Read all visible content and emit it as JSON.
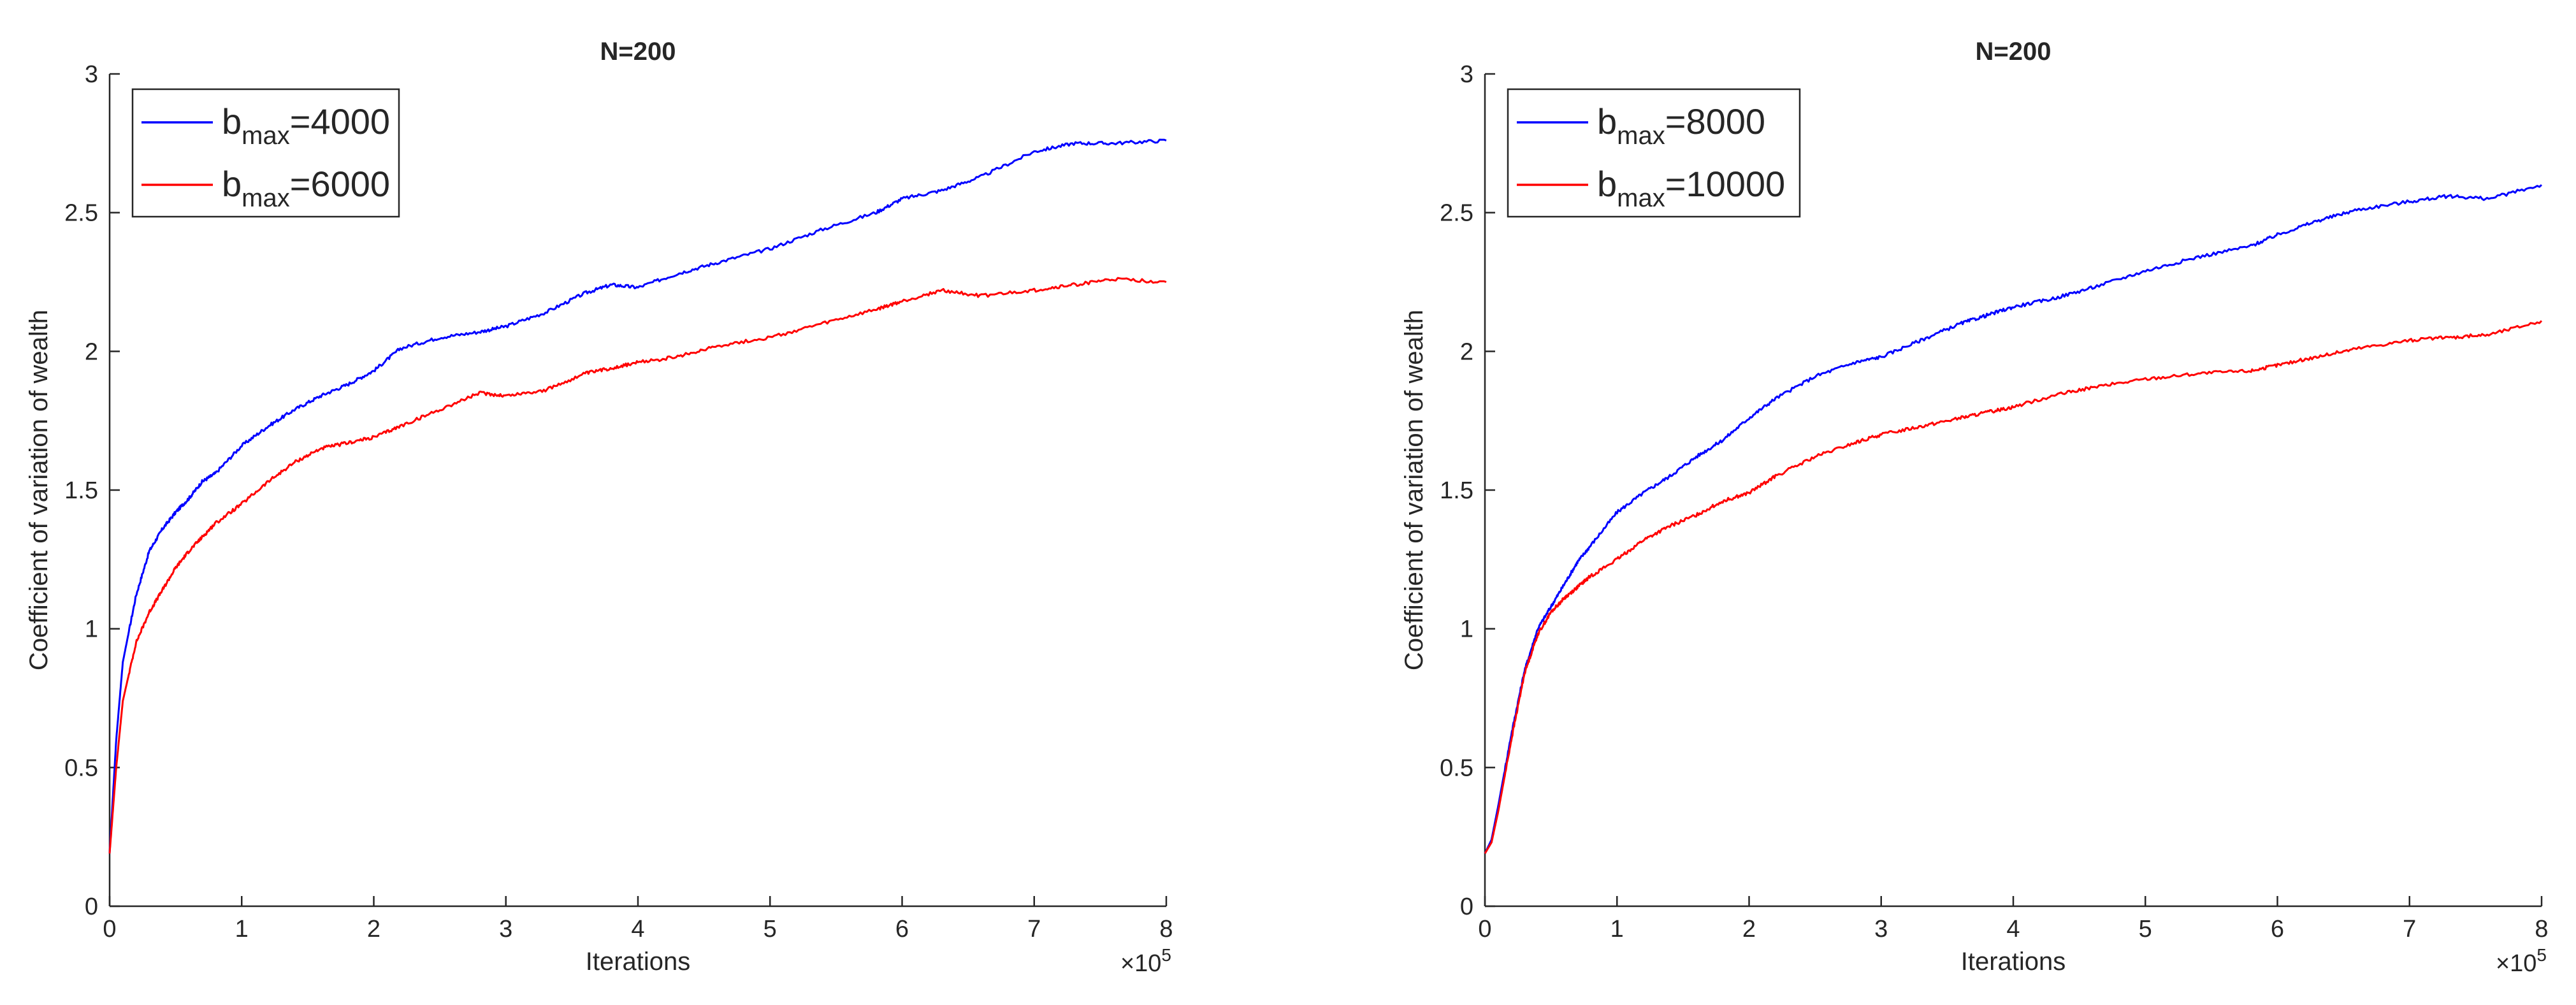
{
  "chart_data": [
    {
      "type": "line",
      "title": "N=200",
      "xlabel": "Iterations",
      "ylabel": "Coefficient of variation of wealth",
      "x_multiplier": "×10",
      "x_multiplier_exp": "5",
      "xlim": [
        0,
        8
      ],
      "ylim": [
        0,
        3
      ],
      "xticks": [
        "0",
        "1",
        "2",
        "3",
        "4",
        "5",
        "6",
        "7",
        "8"
      ],
      "yticks": [
        "0",
        "0.5",
        "1",
        "1.5",
        "2",
        "2.5",
        "3"
      ],
      "legend_position": "top-left",
      "grid": false,
      "x": [
        0,
        0.05,
        0.1,
        0.2,
        0.3,
        0.4,
        0.5,
        0.6,
        0.7,
        0.8,
        1.0,
        1.2,
        1.4,
        1.6,
        1.8,
        2.0,
        2.2,
        2.5,
        2.8,
        3.0,
        3.3,
        3.6,
        3.8,
        4.0,
        4.3,
        4.6,
        5.0,
        5.4,
        5.8,
        6.0,
        6.3,
        6.6,
        7.0,
        7.3,
        7.6,
        8.0
      ],
      "series": [
        {
          "label_base": "b",
          "label_sub": "max",
          "label_value": "=4000",
          "color": "#0000ff",
          "values": [
            0.19,
            0.6,
            0.88,
            1.12,
            1.28,
            1.36,
            1.42,
            1.47,
            1.53,
            1.56,
            1.66,
            1.73,
            1.79,
            1.84,
            1.88,
            1.93,
            2.01,
            2.05,
            2.07,
            2.09,
            2.14,
            2.21,
            2.24,
            2.23,
            2.28,
            2.32,
            2.37,
            2.44,
            2.5,
            2.55,
            2.58,
            2.63,
            2.72,
            2.75,
            2.75,
            2.76
          ]
        },
        {
          "label_base": "b",
          "label_sub": "max",
          "label_value": "=6000",
          "color": "#ff0000",
          "values": [
            0.19,
            0.5,
            0.74,
            0.95,
            1.06,
            1.14,
            1.22,
            1.28,
            1.33,
            1.38,
            1.45,
            1.53,
            1.6,
            1.65,
            1.67,
            1.69,
            1.73,
            1.79,
            1.85,
            1.84,
            1.86,
            1.92,
            1.94,
            1.96,
            1.98,
            2.02,
            2.05,
            2.1,
            2.15,
            2.18,
            2.22,
            2.2,
            2.22,
            2.24,
            2.26,
            2.25
          ]
        }
      ]
    },
    {
      "type": "line",
      "title": "N=200",
      "xlabel": "Iterations",
      "ylabel": "Coefficient of variation of wealth",
      "x_multiplier": "×10",
      "x_multiplier_exp": "5",
      "xlim": [
        0,
        8
      ],
      "ylim": [
        0,
        3
      ],
      "xticks": [
        "0",
        "1",
        "2",
        "3",
        "4",
        "5",
        "6",
        "7",
        "8"
      ],
      "yticks": [
        "0",
        "0.5",
        "1",
        "1.5",
        "2",
        "2.5",
        "3"
      ],
      "legend_position": "top-left",
      "grid": false,
      "x": [
        0,
        0.05,
        0.1,
        0.2,
        0.3,
        0.4,
        0.5,
        0.6,
        0.7,
        0.8,
        1.0,
        1.2,
        1.4,
        1.6,
        1.8,
        2.0,
        2.2,
        2.5,
        2.8,
        3.0,
        3.3,
        3.6,
        3.8,
        4.0,
        4.3,
        4.6,
        5.0,
        5.4,
        5.8,
        6.0,
        6.3,
        6.6,
        7.0,
        7.3,
        7.6,
        8.0
      ],
      "series": [
        {
          "label_base": "b",
          "label_sub": "max",
          "label_value": "=8000",
          "color": "#0000ff",
          "values": [
            0.19,
            0.24,
            0.36,
            0.62,
            0.85,
            1.0,
            1.08,
            1.16,
            1.24,
            1.3,
            1.42,
            1.49,
            1.55,
            1.62,
            1.68,
            1.76,
            1.83,
            1.91,
            1.96,
            1.98,
            2.04,
            2.1,
            2.13,
            2.16,
            2.19,
            2.23,
            2.29,
            2.34,
            2.38,
            2.42,
            2.47,
            2.51,
            2.54,
            2.56,
            2.55,
            2.6
          ]
        },
        {
          "label_base": "b",
          "label_sub": "max",
          "label_value": "=10000",
          "color": "#ff0000",
          "values": [
            0.19,
            0.23,
            0.34,
            0.6,
            0.84,
            0.98,
            1.06,
            1.11,
            1.15,
            1.19,
            1.25,
            1.32,
            1.37,
            1.41,
            1.46,
            1.49,
            1.55,
            1.62,
            1.67,
            1.7,
            1.73,
            1.76,
            1.78,
            1.8,
            1.84,
            1.87,
            1.9,
            1.92,
            1.93,
            1.95,
            1.98,
            2.01,
            2.04,
            2.05,
            2.06,
            2.11
          ]
        }
      ]
    }
  ]
}
